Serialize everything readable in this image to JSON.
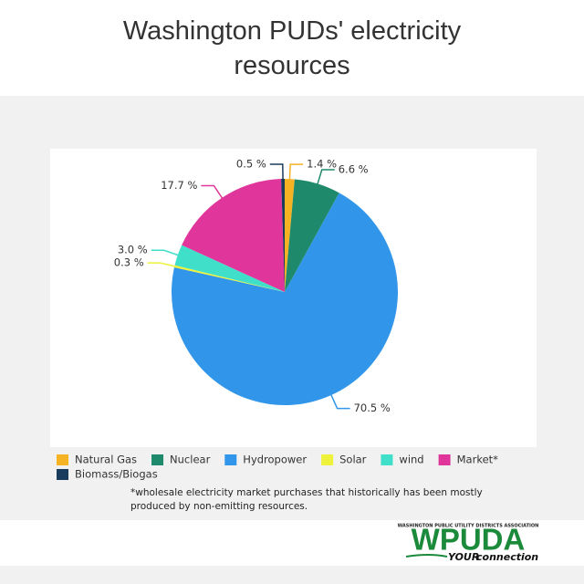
{
  "chart_data": {
    "type": "pie",
    "title": "Washington PUDs' electricity resources",
    "categories": [
      "Natural Gas",
      "Nuclear",
      "Hydropower",
      "Solar",
      "wind",
      "Market*",
      "Biomass/Biogas"
    ],
    "values": [
      1.4,
      6.6,
      70.5,
      0.3,
      3.0,
      17.7,
      0.5
    ],
    "value_labels": [
      "1.4 %",
      "6.6 %",
      "70.5 %",
      "0.3 %",
      "3.0 %",
      "17.7 %",
      "0.5 %"
    ],
    "colors": [
      "#f5b324",
      "#1f8a6b",
      "#3196ea",
      "#eef23a",
      "#3fdfc9",
      "#e0369b",
      "#183b5e"
    ],
    "legend": "bottom",
    "footnote": [
      "*wholesale electricity market purchases that historically has been mostly",
      "produced by non-emitting resources."
    ]
  },
  "logo": {
    "org": "WASHINGTON PUBLIC UTILITY DISTRICTS ASSOCIATION",
    "name": "WPUDA",
    "tagline_bold": "YOUR",
    "tagline": "connection"
  }
}
